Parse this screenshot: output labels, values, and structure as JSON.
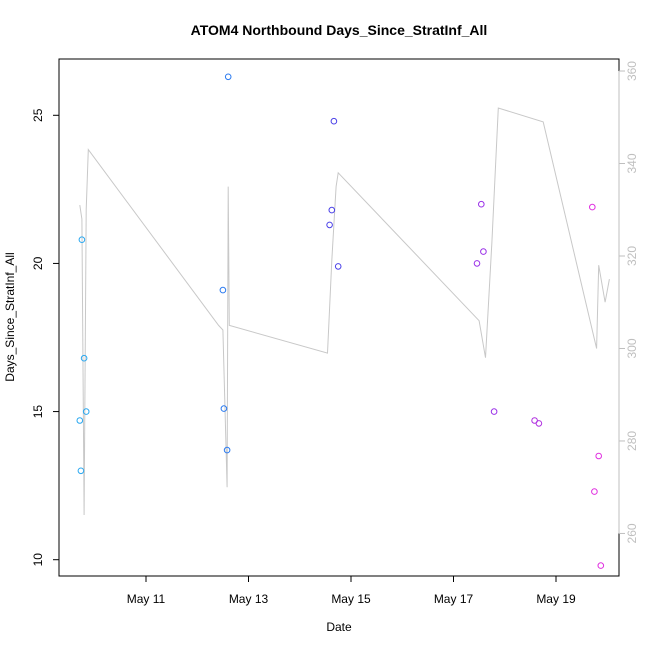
{
  "chart_data": {
    "type": "scatter",
    "title": "ATOM4 Northbound Days_Since_StratInf_All",
    "xlabel": "Date",
    "ylabel": "Days_Since_StratInf_All",
    "x_ticks": [
      "May 11",
      "May 13",
      "May 15",
      "May 17",
      "May 19"
    ],
    "y_ticks": [
      "10",
      "15",
      "20",
      "25"
    ],
    "ylim": [
      9.45,
      26.9
    ],
    "right_axis": {
      "ticks": [
        "260",
        "280",
        "300",
        "320",
        "340",
        "360"
      ],
      "ylim": [
        250.8,
        362.6
      ],
      "color": "#bfbfbf"
    },
    "grid": false,
    "frame_color": "#000000",
    "line_color": "#c8c8c8",
    "scatter_series": {
      "marker": "open-circle",
      "points": [
        {
          "x": "2024-05-09 17:00",
          "y": 14.7,
          "color": "#2aa8f0"
        },
        {
          "x": "2024-05-09 17:30",
          "y": 13.0,
          "color": "#2aa8f0"
        },
        {
          "x": "2024-05-09 18:00",
          "y": 20.8,
          "color": "#2aa8f0"
        },
        {
          "x": "2024-05-09 19:00",
          "y": 16.8,
          "color": "#2aa8f0"
        },
        {
          "x": "2024-05-09 20:00",
          "y": 15.0,
          "color": "#2aa8f0"
        },
        {
          "x": "2024-05-12 12:00",
          "y": 19.1,
          "color": "#2a7af0"
        },
        {
          "x": "2024-05-12 12:30",
          "y": 15.1,
          "color": "#2a7af0"
        },
        {
          "x": "2024-05-12 14:00",
          "y": 13.7,
          "color": "#2a7af0"
        },
        {
          "x": "2024-05-12 14:30",
          "y": 26.3,
          "color": "#2a7af0"
        },
        {
          "x": "2024-05-14 14:00",
          "y": 21.3,
          "color": "#4a40e8"
        },
        {
          "x": "2024-05-14 15:00",
          "y": 21.8,
          "color": "#4a40e8"
        },
        {
          "x": "2024-05-14 16:00",
          "y": 24.8,
          "color": "#4a40e8"
        },
        {
          "x": "2024-05-14 18:00",
          "y": 19.9,
          "color": "#4a40e8"
        },
        {
          "x": "2024-05-17 11:00",
          "y": 20.0,
          "color": "#9a30e8"
        },
        {
          "x": "2024-05-17 13:00",
          "y": 22.0,
          "color": "#9a30e8"
        },
        {
          "x": "2024-05-17 14:00",
          "y": 20.4,
          "color": "#9a30e8"
        },
        {
          "x": "2024-05-17 19:00",
          "y": 15.0,
          "color": "#9a30e8"
        },
        {
          "x": "2024-05-18 14:00",
          "y": 14.7,
          "color": "#b030e0"
        },
        {
          "x": "2024-05-18 16:00",
          "y": 14.6,
          "color": "#b030e0"
        },
        {
          "x": "2024-05-19 17:00",
          "y": 21.9,
          "color": "#e030e0"
        },
        {
          "x": "2024-05-19 18:00",
          "y": 12.3,
          "color": "#e030e0"
        },
        {
          "x": "2024-05-19 20:00",
          "y": 13.5,
          "color": "#e030e0"
        },
        {
          "x": "2024-05-19 21:00",
          "y": 9.8,
          "color": "#e030e0"
        }
      ]
    },
    "line_series": {
      "axis": "right",
      "points": [
        {
          "x": "2024-05-09 17:00",
          "y": 331
        },
        {
          "x": "2024-05-09 18:00",
          "y": 328
        },
        {
          "x": "2024-05-09 19:00",
          "y": 264
        },
        {
          "x": "2024-05-09 20:00",
          "y": 330
        },
        {
          "x": "2024-05-09 21:00",
          "y": 343
        },
        {
          "x": "2024-05-12 10:00",
          "y": 305
        },
        {
          "x": "2024-05-12 12:00",
          "y": 304
        },
        {
          "x": "2024-05-12 14:00",
          "y": 270
        },
        {
          "x": "2024-05-12 14:30",
          "y": 335
        },
        {
          "x": "2024-05-12 15:00",
          "y": 305
        },
        {
          "x": "2024-05-14 13:00",
          "y": 299
        },
        {
          "x": "2024-05-14 15:00",
          "y": 319
        },
        {
          "x": "2024-05-14 17:00",
          "y": 335
        },
        {
          "x": "2024-05-14 18:00",
          "y": 338
        },
        {
          "x": "2024-05-17 12:00",
          "y": 306
        },
        {
          "x": "2024-05-17 15:00",
          "y": 298
        },
        {
          "x": "2024-05-17 18:00",
          "y": 323
        },
        {
          "x": "2024-05-17 21:00",
          "y": 352
        },
        {
          "x": "2024-05-18 18:00",
          "y": 349
        },
        {
          "x": "2024-05-19 19:00",
          "y": 300
        },
        {
          "x": "2024-05-19 20:00",
          "y": 318
        },
        {
          "x": "2024-05-19 23:00",
          "y": 310
        },
        {
          "x": "2024-05-20 01:00",
          "y": 315
        }
      ]
    }
  }
}
